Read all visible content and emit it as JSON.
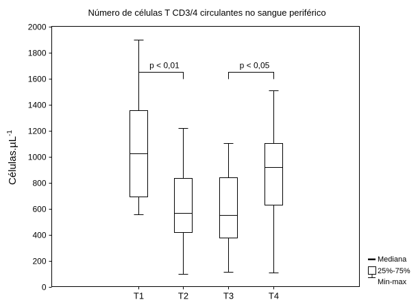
{
  "chart_data": {
    "type": "box",
    "title": "Número de células T CD3/4 circulantes no sangue periférico",
    "xlabel": "",
    "ylabel": "Células.µL",
    "ylabel_superscript": "-1",
    "ylim": [
      0,
      2000
    ],
    "yticks": [
      0,
      200,
      400,
      600,
      800,
      1000,
      1200,
      1400,
      1600,
      1800,
      2000
    ],
    "categories": [
      "T1",
      "T2",
      "T3",
      "T4"
    ],
    "boxes": [
      {
        "category": "T1",
        "min": 555,
        "q1": 690,
        "median": 1025,
        "q3": 1355,
        "max": 1900
      },
      {
        "category": "T2",
        "min": 100,
        "q1": 420,
        "median": 565,
        "q3": 835,
        "max": 1220
      },
      {
        "category": "T3",
        "min": 115,
        "q1": 375,
        "median": 550,
        "q3": 840,
        "max": 1100
      },
      {
        "category": "T4",
        "min": 110,
        "q1": 630,
        "median": 920,
        "q3": 1100,
        "max": 1510
      }
    ],
    "annotations": [
      {
        "text": "p < 0,01",
        "from": "T1",
        "to": "T2"
      },
      {
        "text": "p < 0,05",
        "from": "T3",
        "to": "T4"
      }
    ],
    "legend": {
      "position": "bottom-right",
      "items": [
        {
          "label": "Mediana",
          "symbol": "median-line-icon"
        },
        {
          "label": "25%-75%",
          "symbol": "box-square-icon"
        },
        {
          "label": "Min-max",
          "symbol": "whisker-icon"
        }
      ]
    },
    "grid": false,
    "colors": {
      "line": "#000000",
      "text": "#000000",
      "box_fill": "#ffffff",
      "background": "#ffffff"
    }
  }
}
